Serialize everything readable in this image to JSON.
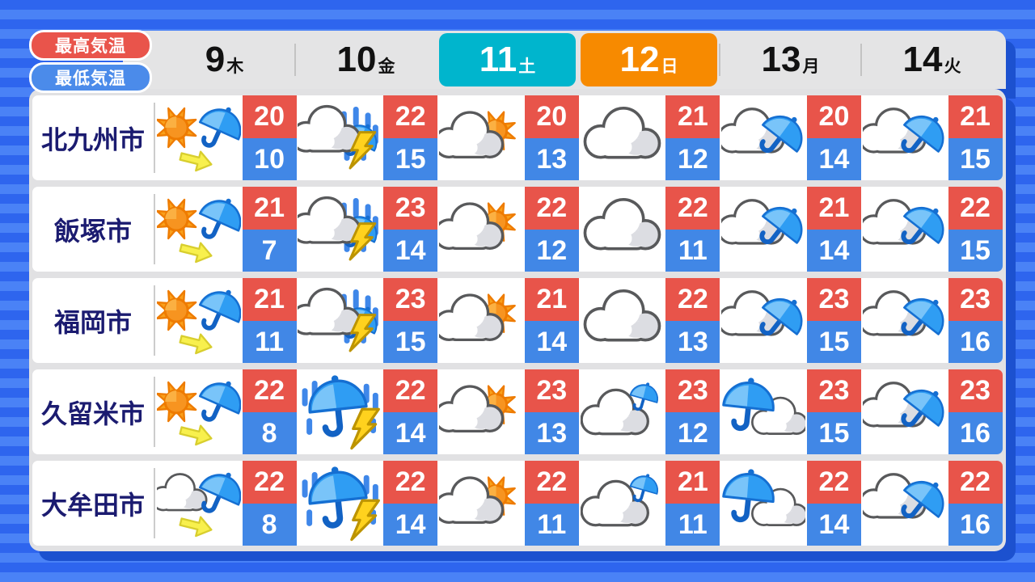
{
  "legend": {
    "max_label": "最高気温",
    "min_label": "最低気温"
  },
  "colors": {
    "max_temp_bg": "#e8544a",
    "min_temp_bg": "#4187e6",
    "saturday_bg": "#00b5cd",
    "sunday_bg": "#f78a00",
    "panel_shadow": "#1c51cf",
    "city_text": "#1b1b70",
    "background_stripe_dark": "#2e65ee",
    "background_stripe_light": "#4a82f6"
  },
  "days": [
    {
      "num": "9",
      "suffix": "木",
      "type": "weekday"
    },
    {
      "num": "10",
      "suffix": "金",
      "type": "weekday"
    },
    {
      "num": "11",
      "suffix": "土",
      "type": "saturday"
    },
    {
      "num": "12",
      "suffix": "日",
      "type": "sunday"
    },
    {
      "num": "13",
      "suffix": "月",
      "type": "weekday"
    },
    {
      "num": "14",
      "suffix": "火",
      "type": "weekday"
    }
  ],
  "cities": [
    {
      "name": "北九州市",
      "cells": [
        {
          "icon": "sun-then-rain",
          "hi": "20",
          "lo": "10"
        },
        {
          "icon": "cloud-rain-thunder",
          "hi": "22",
          "lo": "15"
        },
        {
          "icon": "cloud-sun",
          "hi": "20",
          "lo": "13"
        },
        {
          "icon": "cloudy",
          "hi": "21",
          "lo": "12"
        },
        {
          "icon": "cloud-umbrella",
          "hi": "20",
          "lo": "14"
        },
        {
          "icon": "cloud-umbrella",
          "hi": "21",
          "lo": "15"
        }
      ]
    },
    {
      "name": "飯塚市",
      "cells": [
        {
          "icon": "sun-then-rain",
          "hi": "21",
          "lo": "7"
        },
        {
          "icon": "cloud-rain-thunder",
          "hi": "23",
          "lo": "14"
        },
        {
          "icon": "cloud-sun",
          "hi": "22",
          "lo": "12"
        },
        {
          "icon": "cloudy",
          "hi": "22",
          "lo": "11"
        },
        {
          "icon": "cloud-umbrella",
          "hi": "21",
          "lo": "14"
        },
        {
          "icon": "cloud-umbrella",
          "hi": "22",
          "lo": "15"
        }
      ]
    },
    {
      "name": "福岡市",
      "cells": [
        {
          "icon": "sun-then-rain",
          "hi": "21",
          "lo": "11"
        },
        {
          "icon": "cloud-rain-thunder",
          "hi": "23",
          "lo": "15"
        },
        {
          "icon": "cloud-sun",
          "hi": "21",
          "lo": "14"
        },
        {
          "icon": "cloudy",
          "hi": "22",
          "lo": "13"
        },
        {
          "icon": "cloud-umbrella",
          "hi": "23",
          "lo": "15"
        },
        {
          "icon": "cloud-umbrella",
          "hi": "23",
          "lo": "16"
        }
      ]
    },
    {
      "name": "久留米市",
      "cells": [
        {
          "icon": "sun-then-rain",
          "hi": "22",
          "lo": "8"
        },
        {
          "icon": "rain-thunder",
          "hi": "22",
          "lo": "14"
        },
        {
          "icon": "cloud-sun",
          "hi": "23",
          "lo": "13"
        },
        {
          "icon": "cloud-small-umbrella",
          "hi": "23",
          "lo": "12"
        },
        {
          "icon": "umbrella-then-cloud",
          "hi": "23",
          "lo": "15"
        },
        {
          "icon": "cloud-umbrella",
          "hi": "23",
          "lo": "16"
        }
      ]
    },
    {
      "name": "大牟田市",
      "cells": [
        {
          "icon": "cloud-then-rain",
          "hi": "22",
          "lo": "8"
        },
        {
          "icon": "rain-thunder",
          "hi": "22",
          "lo": "14"
        },
        {
          "icon": "cloud-sun",
          "hi": "22",
          "lo": "11"
        },
        {
          "icon": "cloud-small-umbrella",
          "hi": "21",
          "lo": "11"
        },
        {
          "icon": "umbrella-then-cloud",
          "hi": "22",
          "lo": "14"
        },
        {
          "icon": "cloud-umbrella",
          "hi": "22",
          "lo": "16"
        }
      ]
    }
  ]
}
